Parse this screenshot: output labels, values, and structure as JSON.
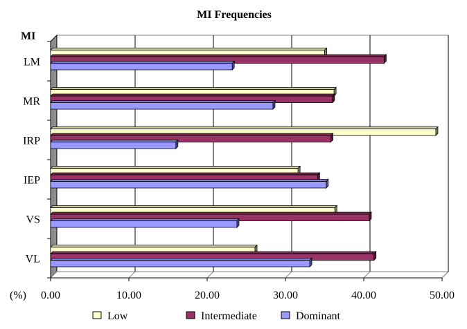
{
  "chart_data": {
    "type": "bar",
    "orientation": "horizontal",
    "title": "MI Frequencies",
    "ylabel": "MI",
    "xlabel": "(%)",
    "xlim": [
      0,
      50
    ],
    "xticks": [
      "0.00",
      "10.00",
      "20.00",
      "30.00",
      "40.00",
      "50.00"
    ],
    "grid": true,
    "legend_position": "bottom",
    "categories": [
      "LM",
      "MR",
      "IRP",
      "IEP",
      "VS",
      "VL"
    ],
    "series": [
      {
        "name": "Low",
        "color": "#ffffcc",
        "values": [
          35.0,
          36.2,
          49.2,
          31.6,
          36.3,
          26.1
        ]
      },
      {
        "name": "Intermediate",
        "color": "#993366",
        "values": [
          42.6,
          36.0,
          35.8,
          34.1,
          40.7,
          41.3
        ]
      },
      {
        "name": "Dominant",
        "color": "#9999ff",
        "values": [
          23.2,
          28.4,
          16.0,
          35.2,
          23.8,
          33.1
        ]
      }
    ]
  }
}
